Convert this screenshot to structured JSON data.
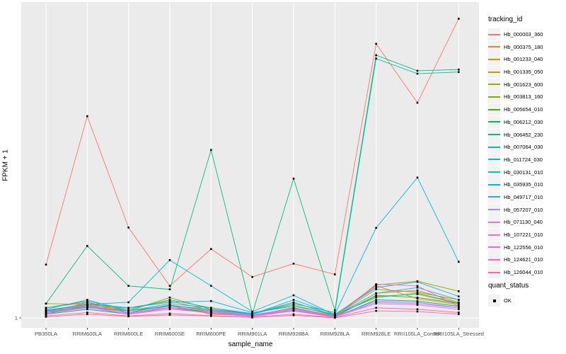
{
  "figure": {
    "background": "#FFFFFF",
    "panel_background": "#EBEBEB",
    "grid_color": "#FFFFFF",
    "tick_color": "#333333",
    "tick_label_color": "#4D4D4D",
    "point_color": "#000000",
    "legend_key_background": "#F2F2F2"
  },
  "chart_data": {
    "type": "line",
    "title": "",
    "xlabel": "sample_name",
    "ylabel": "FPKM + 1",
    "y_scale": "log10",
    "y_axis_ticks": [
      {
        "label": "1",
        "value": 1
      }
    ],
    "grid": "vertical-per-category-plus-y1",
    "point_marker": "filled-black-square",
    "legend_position": "right",
    "x_categories": [
      "PB350LA",
      "RRIM600LA",
      "RRIM600LE",
      "RRIM600SE",
      "RRIM600PE",
      "RRIM901LA",
      "RRIM928BA",
      "RRIM928LA",
      "RRIM928LE",
      "RRII105LA_Control",
      "RRII105LA_Stressed"
    ],
    "tracking_legend_title": "tracking_id",
    "quant_legend": {
      "title": "quant_status",
      "items": [
        {
          "label": "OK"
        }
      ]
    },
    "series": [
      {
        "name": "Hb_000003_360",
        "color": "#F8766D",
        "values": [
          4.0,
          190,
          10.5,
          2.3,
          6.0,
          2.9,
          4.1,
          3.1,
          1250,
          270,
          2400
        ]
      },
      {
        "name": "Hb_000375_180",
        "color": "#EA8331",
        "values": [
          1.15,
          1.35,
          1.1,
          1.3,
          1.12,
          1.05,
          1.25,
          1.04,
          2.3,
          1.65,
          1.4
        ]
      },
      {
        "name": "Hb_001233_040",
        "color": "#D89000",
        "values": [
          1.1,
          1.5,
          1.15,
          1.4,
          1.1,
          1.06,
          1.3,
          1.05,
          1.9,
          2.05,
          1.5
        ]
      },
      {
        "name": "Hb_001335_050",
        "color": "#C09B00",
        "values": [
          1.2,
          1.4,
          1.2,
          1.35,
          1.15,
          1.08,
          1.28,
          1.06,
          1.75,
          1.85,
          1.45
        ]
      },
      {
        "name": "Hb_001623_600",
        "color": "#A3A500",
        "values": [
          1.45,
          1.42,
          1.3,
          1.55,
          1.22,
          1.1,
          1.5,
          1.07,
          2.35,
          2.6,
          2.0
        ]
      },
      {
        "name": "Hb_003813_160",
        "color": "#7CAE00",
        "values": [
          1.3,
          1.5,
          1.2,
          1.7,
          1.25,
          1.12,
          1.4,
          1.06,
          2.1,
          1.95,
          1.6
        ]
      },
      {
        "name": "Hb_005654_010",
        "color": "#39B600",
        "values": [
          1.2,
          1.35,
          1.15,
          1.4,
          1.2,
          1.06,
          1.3,
          1.03,
          1.8,
          1.7,
          1.45
        ]
      },
      {
        "name": "Hb_006212_030",
        "color": "#00BB4E",
        "values": [
          1.1,
          1.25,
          1.1,
          1.3,
          1.15,
          1.05,
          1.2,
          1.02,
          1.6,
          1.55,
          1.35
        ]
      },
      {
        "name": "Hb_006452_230",
        "color": "#00BF7D",
        "values": [
          1.45,
          6.5,
          2.3,
          2.1,
          79,
          1.12,
          37.5,
          1.22,
          930,
          620,
          640
        ]
      },
      {
        "name": "Hb_007064_030",
        "color": "#00C1A3",
        "values": [
          1.3,
          1.55,
          1.25,
          1.6,
          1.3,
          1.1,
          1.45,
          1.15,
          850,
          575,
          600
        ]
      },
      {
        "name": "Hb_011724_030",
        "color": "#00BFC4",
        "values": [
          1.22,
          1.42,
          1.5,
          4.5,
          2.3,
          1.18,
          1.8,
          1.08,
          1.7,
          1.9,
          1.47
        ]
      },
      {
        "name": "Hb_030131_010",
        "color": "#00BAE0",
        "values": [
          1.15,
          1.32,
          1.2,
          1.38,
          1.25,
          1.1,
          1.6,
          1.1,
          10.4,
          38.5,
          4.3
        ]
      },
      {
        "name": "Hb_035935_010",
        "color": "#00B0F6",
        "values": [
          1.2,
          1.45,
          1.3,
          1.5,
          1.55,
          1.15,
          1.35,
          1.1,
          2.2,
          2.55,
          1.75
        ]
      },
      {
        "name": "Hb_049717_010",
        "color": "#35A2FF",
        "values": [
          1.25,
          1.6,
          1.2,
          1.45,
          1.3,
          1.12,
          1.5,
          1.06,
          1.9,
          2.2,
          1.6
        ]
      },
      {
        "name": "Hb_057207_010",
        "color": "#9590FF",
        "values": [
          1.18,
          1.38,
          1.15,
          1.3,
          1.2,
          1.08,
          1.28,
          1.04,
          1.55,
          1.5,
          1.3
        ]
      },
      {
        "name": "Hb_071130_040",
        "color": "#C77CFF",
        "values": [
          1.12,
          1.3,
          1.1,
          1.25,
          1.15,
          1.05,
          1.22,
          1.03,
          1.45,
          1.4,
          1.25
        ]
      },
      {
        "name": "Hb_107221_010",
        "color": "#E76BF3",
        "values": [
          1.15,
          1.45,
          1.12,
          1.35,
          1.18,
          1.06,
          1.25,
          1.03,
          1.5,
          1.45,
          1.3
        ]
      },
      {
        "name": "Hb_122556_010",
        "color": "#FA62DB",
        "values": [
          1.1,
          1.35,
          1.1,
          1.3,
          1.12,
          1.04,
          1.2,
          1.02,
          2.4,
          2.3,
          1.35
        ]
      },
      {
        "name": "Hb_124621_010",
        "color": "#FF62BC",
        "values": [
          1.05,
          1.15,
          1.05,
          1.12,
          1.06,
          1.02,
          1.1,
          1.01,
          1.3,
          1.25,
          1.15
        ]
      },
      {
        "name": "Hb_126044_010",
        "color": "#FF6A98",
        "values": [
          1.03,
          1.1,
          1.04,
          1.08,
          1.05,
          1.01,
          1.07,
          1.0,
          1.2,
          1.18,
          1.1
        ]
      }
    ]
  }
}
